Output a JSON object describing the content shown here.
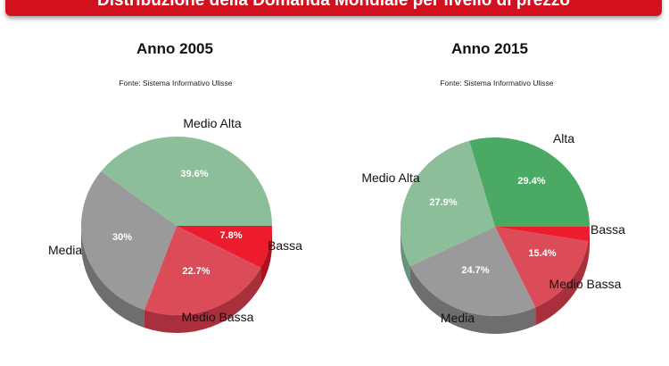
{
  "banner": {
    "title": "Distribuzione della Domanda Mondiale per livello di prezzo"
  },
  "charts": [
    {
      "title": "Anno 2005",
      "source": "Fonte: Sistema Informativo Ulisse"
    },
    {
      "title": "Anno 2015",
      "source": "Fonte: Sistema Informativo Ulisse"
    }
  ],
  "chart_data": [
    {
      "type": "pie",
      "title": "Anno 2005",
      "subtitle": "Fonte: Sistema Informativo Ulisse",
      "slices": [
        {
          "label": "Bassa",
          "value": 7.8,
          "value_label": "7.8%",
          "color": "#ec1c2c",
          "side": "#b0101c"
        },
        {
          "label": "Medio Bassa",
          "value": 22.7,
          "value_label": "22.7%",
          "color": "#dc4b58",
          "side": "#a8303c"
        },
        {
          "label": "Media",
          "value": 30,
          "value_label": "30%",
          "color": "#9a9a9a",
          "side": "#6e6e6e"
        },
        {
          "label": "Medio Alta",
          "value": 39.6,
          "value_label": "39.6%",
          "color": "#8cbe9a",
          "side": "#64947a"
        }
      ]
    },
    {
      "type": "pie",
      "title": "Anno 2015",
      "subtitle": "Fonte: Sistema Informativo Ulisse",
      "slices": [
        {
          "label": "Bassa",
          "value": 2.6,
          "value_label": "",
          "color": "#ec1c2c",
          "side": "#b0101c"
        },
        {
          "label": "Medio Bassa",
          "value": 15.4,
          "value_label": "15.4%",
          "color": "#dc4b58",
          "side": "#a8303c"
        },
        {
          "label": "Media",
          "value": 24.7,
          "value_label": "24.7%",
          "color": "#9a9a9a",
          "side": "#6e6e6e"
        },
        {
          "label": "Medio Alta",
          "value": 27.9,
          "value_label": "27.9%",
          "color": "#8cbe9a",
          "side": "#64947a"
        },
        {
          "label": "Alta",
          "value": 29.4,
          "value_label": "29.4%",
          "color": "#4aaa64",
          "side": "#2f7a44"
        }
      ]
    }
  ]
}
